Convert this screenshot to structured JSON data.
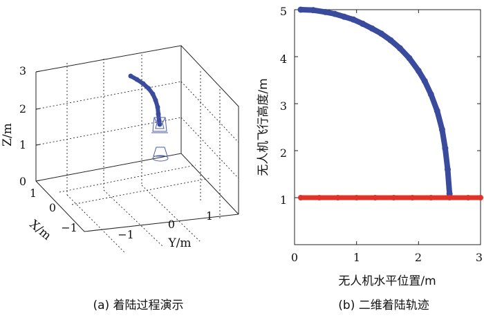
{
  "captions": {
    "a": "(a) 着陆过程演示",
    "b": "(b) 二维着陆轨迹"
  },
  "chart_data": [
    {
      "panel": "a",
      "type": "scatter",
      "dimensions": 3,
      "xlabel": "X/m",
      "ylabel": "Y/m",
      "zlabel": "Z/m",
      "xticks": [
        "1",
        "0",
        "−1"
      ],
      "yticks": [
        "−1",
        "0",
        "1"
      ],
      "zticks": [
        "0",
        "1",
        "2",
        "3"
      ],
      "grid": true,
      "trajectory_color": "#3a4a9c",
      "marker_color": "#4a5ab0"
    },
    {
      "panel": "b",
      "type": "scatter",
      "xlabel": "无人机水平位置/m",
      "ylabel": "无人机飞行高度/m",
      "xlim": [
        0,
        3
      ],
      "ylim": [
        0,
        5
      ],
      "xticks": [
        "0",
        "1",
        "2",
        "3"
      ],
      "yticks": [
        "1",
        "2",
        "3",
        "4",
        "5"
      ],
      "grid": false,
      "series": [
        {
          "color": "#3a4a9c",
          "x": [
            0.1,
            0.3,
            0.5,
            0.65,
            0.8,
            0.95,
            1.1,
            1.25,
            1.4,
            1.55,
            1.7,
            1.85,
            2.0,
            2.1,
            2.2,
            2.3,
            2.38,
            2.43,
            2.47,
            2.5
          ],
          "y": [
            5.0,
            4.99,
            4.95,
            4.91,
            4.85,
            4.79,
            4.7,
            4.6,
            4.49,
            4.35,
            4.18,
            3.97,
            3.7,
            3.48,
            3.2,
            2.85,
            2.45,
            2.05,
            1.6,
            1.08
          ]
        },
        {
          "color": "#e03226",
          "x": [
            0.1,
            0.4,
            0.7,
            1.0,
            1.3,
            1.6,
            1.9,
            2.2,
            2.5,
            2.8,
            3.0
          ],
          "y": [
            1,
            1,
            1,
            1,
            1,
            1,
            1,
            1,
            1,
            1,
            1
          ]
        }
      ]
    }
  ]
}
